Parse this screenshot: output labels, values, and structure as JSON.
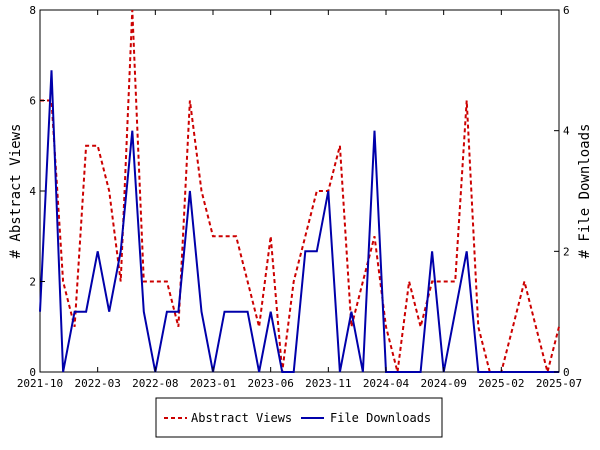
{
  "chart_data": {
    "type": "line",
    "x_tick_labels": [
      "2021-10",
      "2022-03",
      "2022-08",
      "2023-01",
      "2023-06",
      "2023-11",
      "2024-04",
      "2024-09",
      "2025-02",
      "2025-07"
    ],
    "y_left": {
      "label": "# Abstract Views",
      "range": [
        0,
        8
      ],
      "ticks": [
        "0",
        "2",
        "4",
        "6",
        "8"
      ]
    },
    "y_right": {
      "label": "# File Downloads",
      "range": [
        0,
        6
      ],
      "ticks": [
        "0",
        "2",
        "4",
        "6"
      ]
    },
    "legend_position": "bottom-center",
    "grid": false,
    "series": [
      {
        "name": "Abstract Views",
        "axis": "left",
        "color": "#cc0000",
        "dash": "dashed",
        "x": [
          "2021-10",
          "2021-11",
          "2021-12",
          "2022-01",
          "2022-02",
          "2022-03",
          "2022-04",
          "2022-05",
          "2022-06",
          "2022-07",
          "2022-08",
          "2022-09",
          "2022-10",
          "2022-11",
          "2022-12",
          "2023-01",
          "2023-02",
          "2023-03",
          "2023-04",
          "2023-05",
          "2023-06",
          "2023-07",
          "2023-08",
          "2023-09",
          "2023-10",
          "2023-11",
          "2023-12",
          "2024-01",
          "2024-02",
          "2024-03",
          "2024-04",
          "2024-05",
          "2024-06",
          "2024-07",
          "2024-08",
          "2024-09",
          "2024-10",
          "2024-11",
          "2024-12",
          "2025-01",
          "2025-02",
          "2025-03",
          "2025-04",
          "2025-05",
          "2025-06",
          "2025-07"
        ],
        "values": [
          6,
          6,
          2,
          1,
          5,
          5,
          4,
          2,
          8,
          2,
          2,
          2,
          1,
          6,
          4,
          3,
          3,
          3,
          2,
          1,
          3,
          0,
          2,
          3,
          4,
          4,
          5,
          1,
          2,
          3,
          1,
          0,
          2,
          1,
          2,
          2,
          2,
          6,
          1,
          0,
          0,
          1,
          2,
          1,
          0,
          1
        ]
      },
      {
        "name": "File Downloads",
        "axis": "right",
        "color": "#0000aa",
        "dash": "solid",
        "x": [
          "2021-10",
          "2021-11",
          "2021-12",
          "2022-01",
          "2022-02",
          "2022-03",
          "2022-04",
          "2022-05",
          "2022-06",
          "2022-07",
          "2022-08",
          "2022-09",
          "2022-10",
          "2022-11",
          "2022-12",
          "2023-01",
          "2023-02",
          "2023-03",
          "2023-04",
          "2023-05",
          "2023-06",
          "2023-07",
          "2023-08",
          "2023-09",
          "2023-10",
          "2023-11",
          "2023-12",
          "2024-01",
          "2024-02",
          "2024-03",
          "2024-04",
          "2024-05",
          "2024-06",
          "2024-07",
          "2024-08",
          "2024-09",
          "2024-10",
          "2024-11",
          "2024-12",
          "2025-01",
          "2025-02",
          "2025-03",
          "2025-04",
          "2025-05",
          "2025-06",
          "2025-07"
        ],
        "values": [
          1,
          5,
          0,
          1,
          1,
          2,
          1,
          2,
          4,
          1,
          0,
          1,
          1,
          3,
          1,
          0,
          1,
          1,
          1,
          0,
          1,
          0,
          0,
          2,
          2,
          3,
          0,
          1,
          0,
          4,
          0,
          0,
          0,
          0,
          2,
          0,
          1,
          2,
          0,
          0,
          0,
          0,
          0,
          0,
          0,
          0
        ]
      }
    ]
  }
}
